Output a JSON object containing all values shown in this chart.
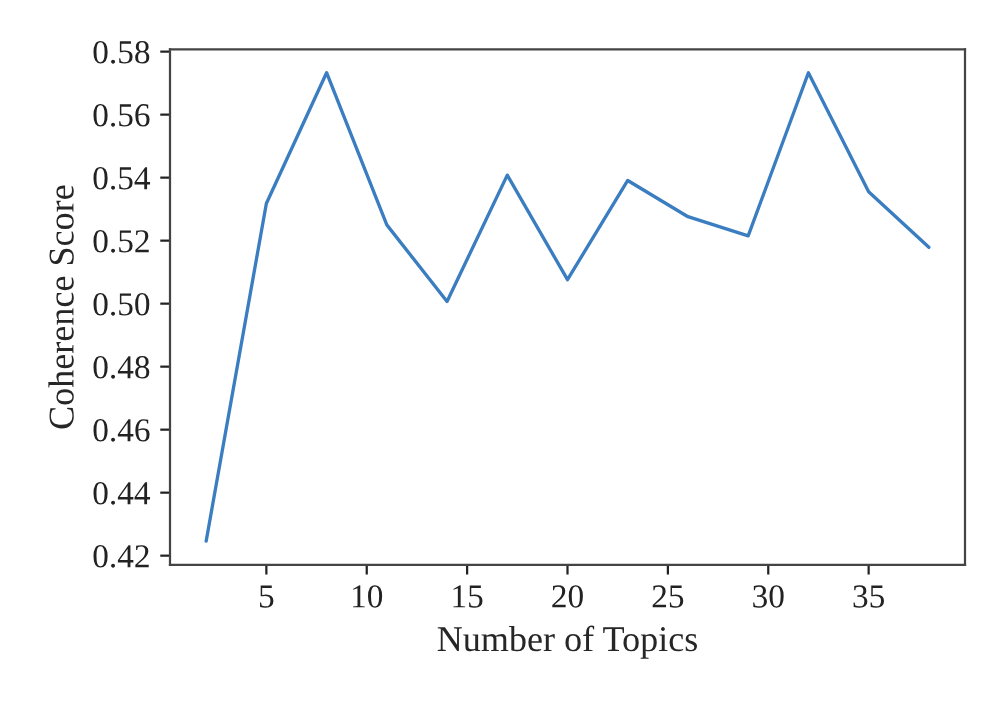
{
  "chart_data": {
    "type": "line",
    "xlabel": "Number of Topics",
    "ylabel": "Coherence Score",
    "x": [
      2,
      5,
      8,
      11,
      14,
      17,
      20,
      23,
      26,
      29,
      32,
      35,
      38
    ],
    "series": [
      {
        "color": "#3a7dc0",
        "values": [
          0.4246,
          0.5318,
          0.5733,
          0.525,
          0.5007,
          0.5408,
          0.5076,
          0.5391,
          0.5276,
          0.5215,
          0.5733,
          0.5355,
          0.5179
        ]
      }
    ],
    "xlim": [
      0.2,
      39.8
    ],
    "ylim": [
      0.4171,
      0.5807
    ],
    "xticks": [
      5,
      10,
      15,
      20,
      25,
      30,
      35
    ],
    "yticks": [
      {
        "value": 0.42,
        "label": "0.42"
      },
      {
        "value": 0.44,
        "label": "0.44"
      },
      {
        "value": 0.46,
        "label": "0.46"
      },
      {
        "value": 0.48,
        "label": "0.48"
      },
      {
        "value": 0.5,
        "label": "0.50"
      },
      {
        "value": 0.52,
        "label": "0.52"
      },
      {
        "value": 0.54,
        "label": "0.54"
      },
      {
        "value": 0.56,
        "label": "0.56"
      },
      {
        "value": 0.58,
        "label": "0.58"
      }
    ],
    "grid": false,
    "legend": false
  }
}
